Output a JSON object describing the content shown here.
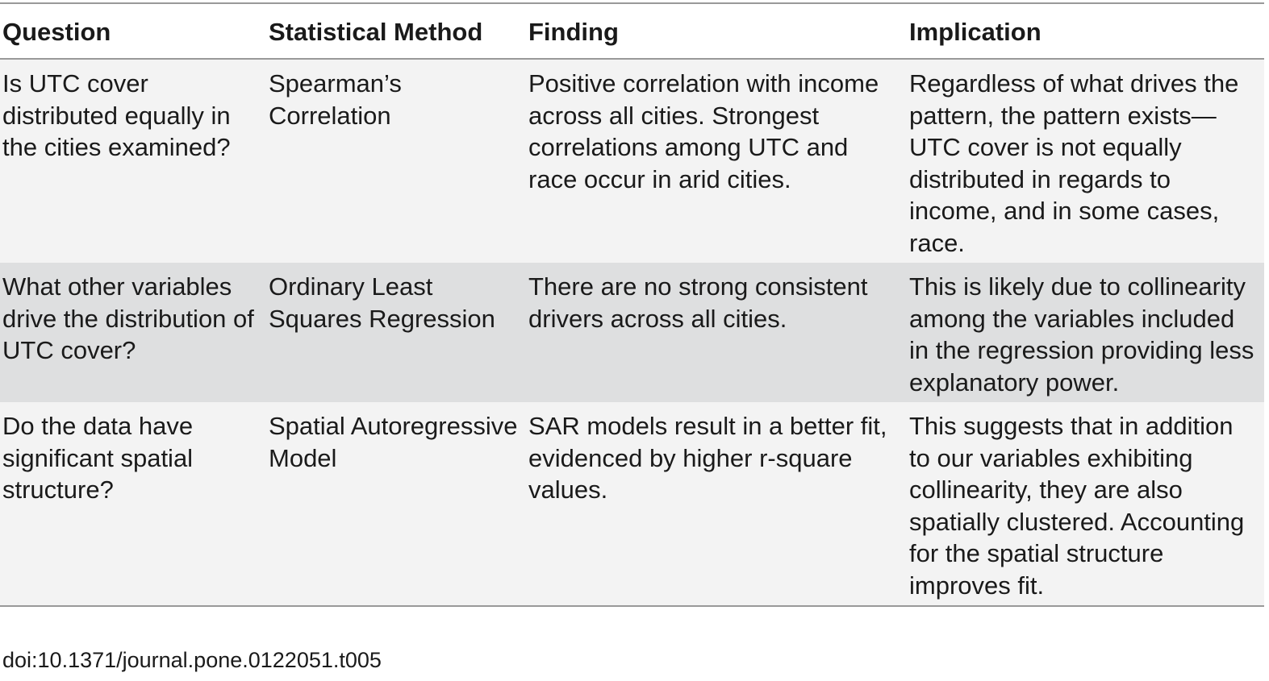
{
  "table": {
    "headers": [
      "Question",
      "Statistical Method",
      "Finding",
      "Implication"
    ],
    "rows": [
      {
        "question": "Is UTC cover distributed equally in the cities examined?",
        "method": "Spearman’s Correlation",
        "finding": "Positive correlation with income across all cities. Strongest correlations among UTC and race occur in arid cities.",
        "implication": "Regardless of what drives the pattern, the pattern exists—UTC cover is not equally distributed in regards to income, and in some cases, race."
      },
      {
        "question": "What other variables drive the distribution of UTC cover?",
        "method": "Ordinary Least Squares Regression",
        "finding": "There are no strong consistent drivers across all cities.",
        "implication": "This is likely due to collinearity among the variables included in the regression providing less explanatory power."
      },
      {
        "question": "Do the data have significant spatial structure?",
        "method": "Spatial Autoregressive Model",
        "finding": "SAR models result in a better fit, evidenced by higher r-square values.",
        "implication": "This suggests that in addition to our variables exhibiting collinearity, they are also spatially clustered. Accounting for the spatial structure improves fit."
      }
    ]
  },
  "footer": {
    "doi": "doi:10.1371/journal.pone.0122051.t005"
  },
  "colors": {
    "row_light": "#f3f3f3",
    "row_dark": "#dedfe0",
    "rule": "#999999"
  }
}
